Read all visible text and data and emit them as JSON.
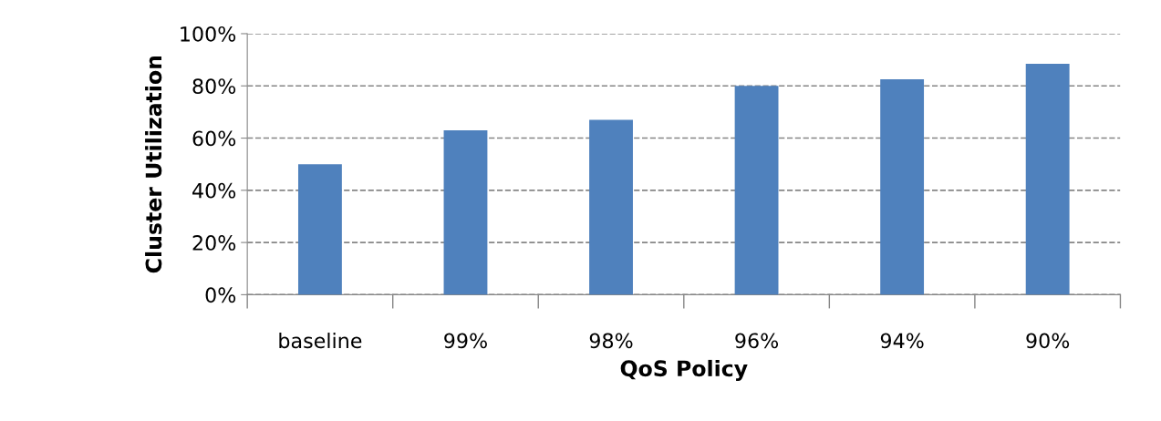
{
  "chart_data": {
    "type": "bar",
    "xlabel": "QoS Policy",
    "ylabel": "Cluster Utilization",
    "categories": [
      "baseline",
      "99%",
      "98%",
      "96%",
      "94%",
      "90%"
    ],
    "values": [
      50,
      63,
      67,
      80,
      82.5,
      88.5
    ],
    "color": "#4f81bd",
    "ylim": [
      0,
      100
    ],
    "yticks": [
      {
        "value": 0,
        "label": "0%"
      },
      {
        "value": 20,
        "label": "20%"
      },
      {
        "value": 40,
        "label": "40%"
      },
      {
        "value": 60,
        "label": "60%"
      },
      {
        "value": 80,
        "label": "80%"
      },
      {
        "value": 100,
        "label": "100%"
      }
    ],
    "grid": "y",
    "legend": false
  }
}
